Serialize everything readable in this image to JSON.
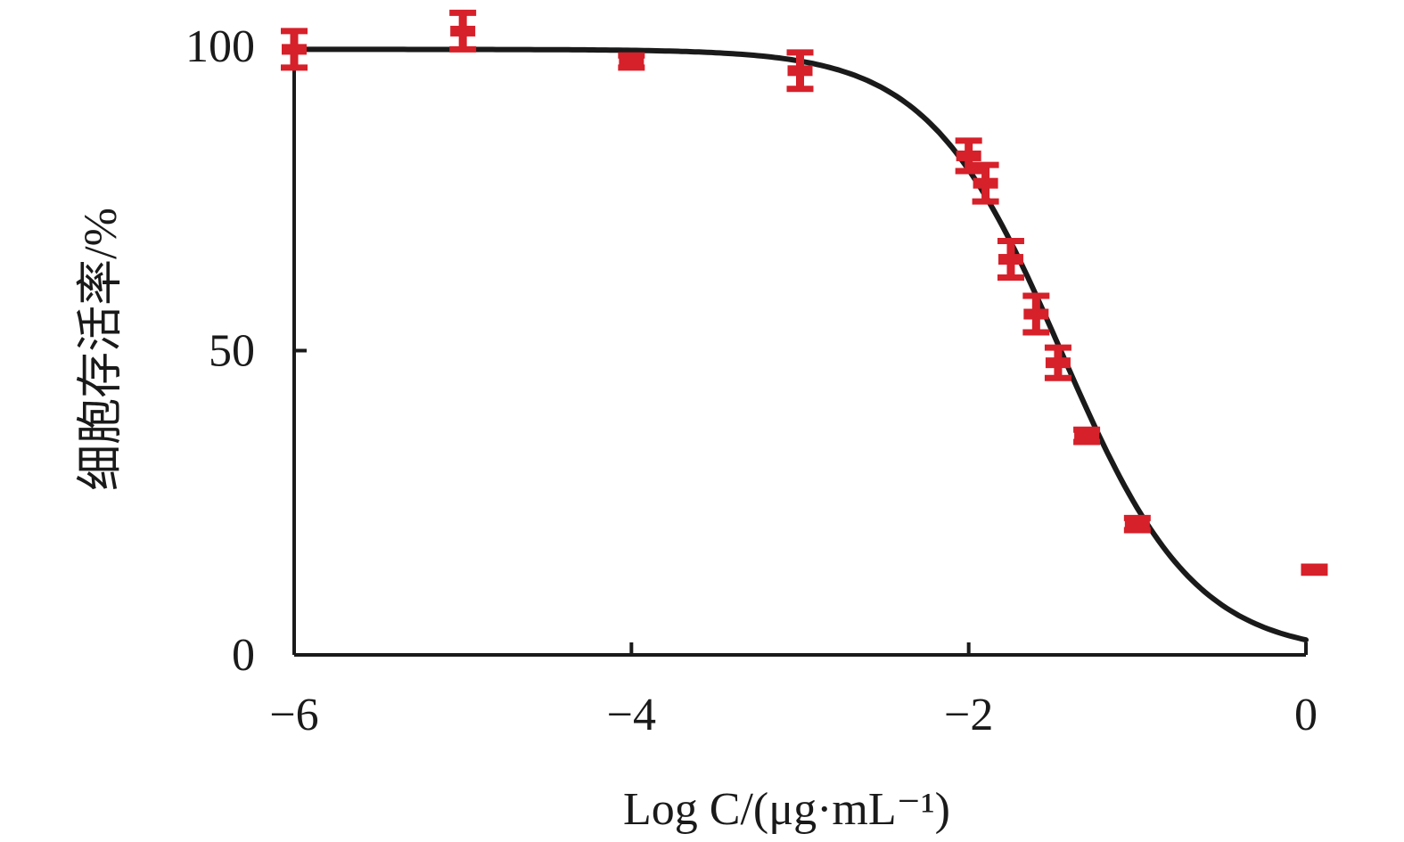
{
  "chart_data": {
    "type": "scatter",
    "xlabel": "Log C/(μg·mL⁻¹)",
    "ylabel": "细胞存活率/%",
    "xlim": [
      -6,
      0
    ],
    "ylim": [
      0,
      100
    ],
    "x_ticks": [
      -6,
      -4,
      -2,
      0
    ],
    "x_tick_labels": [
      "−6",
      "−4",
      "−2",
      "0"
    ],
    "y_ticks": [
      0,
      50,
      100
    ],
    "y_tick_labels": [
      "0",
      "50",
      "100"
    ],
    "grid": false,
    "legend": "none",
    "series": [
      {
        "type": "scatter_errorbar",
        "color": "#d6202a",
        "points": [
          {
            "x": -6.0,
            "y": 99.5,
            "err": 3.0
          },
          {
            "x": -5.0,
            "y": 102.5,
            "err": 3.0
          },
          {
            "x": -4.0,
            "y": 97.5,
            "err": 1.0
          },
          {
            "x": -3.0,
            "y": 96.0,
            "err": 3.0
          },
          {
            "x": -2.0,
            "y": 82.0,
            "err": 2.5
          },
          {
            "x": -1.9,
            "y": 77.5,
            "err": 3.0
          },
          {
            "x": -1.75,
            "y": 65.0,
            "err": 3.0
          },
          {
            "x": -1.6,
            "y": 56.0,
            "err": 3.0
          },
          {
            "x": -1.47,
            "y": 48.0,
            "err": 2.5
          },
          {
            "x": -1.3,
            "y": 36.0,
            "err": 1.0
          },
          {
            "x": -1.0,
            "y": 21.5,
            "err": 1.0
          },
          {
            "x": 0.05,
            "y": 14.0,
            "err": 0.5
          }
        ]
      },
      {
        "type": "fit_line",
        "color": "#1a1a1a",
        "model": "four-parameter logistic",
        "top": 99.5,
        "bottom": 0,
        "log_ic50": -1.45,
        "hill_slope": 1.1
      }
    ]
  }
}
